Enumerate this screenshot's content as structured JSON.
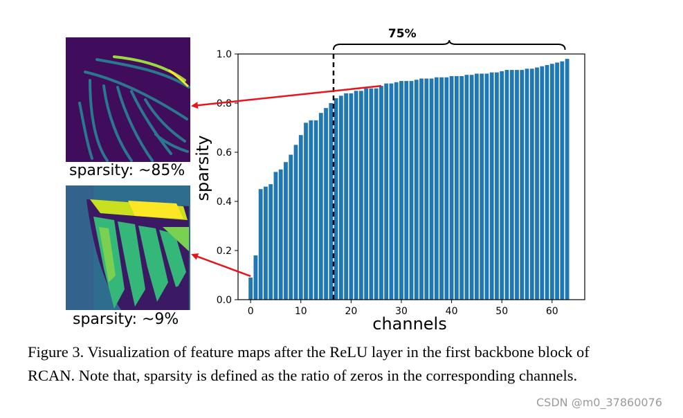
{
  "figure": {
    "caption": "Figure 3. Visualization of feature maps after the ReLU layer in the first backbone block of RCAN. Note that, sparsity is defined as the ratio of zeros in the corresponding channels.",
    "watermark": "CSDN @m0_37860076"
  },
  "thumbnails": [
    {
      "label": "sparsity: ~85%",
      "sparsity": 0.85
    },
    {
      "label": "sparsity: ~9%",
      "sparsity": 0.09
    }
  ],
  "colors": {
    "bar": "#1f77b4",
    "arrow": "#e8141c",
    "thumb_dark": "#440154",
    "thumb_mid": "#2a788e",
    "thumb_light": "#fde725"
  },
  "chart_data": {
    "type": "bar",
    "xlabel": "channels",
    "ylabel": "sparsity",
    "xlim": [
      -2.5,
      66.5
    ],
    "ylim": [
      0.0,
      1.0
    ],
    "xticks": [
      0,
      10,
      20,
      30,
      40,
      50,
      60
    ],
    "yticks": [
      0.0,
      0.2,
      0.4,
      0.6,
      0.8,
      1.0
    ],
    "categories": [
      0,
      1,
      2,
      3,
      4,
      5,
      6,
      7,
      8,
      9,
      10,
      11,
      12,
      13,
      14,
      15,
      16,
      17,
      18,
      19,
      20,
      21,
      22,
      23,
      24,
      25,
      26,
      27,
      28,
      29,
      30,
      31,
      32,
      33,
      34,
      35,
      36,
      37,
      38,
      39,
      40,
      41,
      42,
      43,
      44,
      45,
      46,
      47,
      48,
      49,
      50,
      51,
      52,
      53,
      54,
      55,
      56,
      57,
      58,
      59,
      60,
      61,
      62,
      63
    ],
    "values": [
      0.09,
      0.18,
      0.45,
      0.46,
      0.47,
      0.52,
      0.53,
      0.56,
      0.59,
      0.63,
      0.67,
      0.72,
      0.73,
      0.73,
      0.76,
      0.78,
      0.8,
      0.82,
      0.83,
      0.84,
      0.84,
      0.85,
      0.85,
      0.86,
      0.86,
      0.86,
      0.87,
      0.88,
      0.88,
      0.885,
      0.89,
      0.89,
      0.89,
      0.895,
      0.9,
      0.9,
      0.9,
      0.905,
      0.905,
      0.905,
      0.91,
      0.91,
      0.91,
      0.915,
      0.915,
      0.92,
      0.92,
      0.92,
      0.925,
      0.925,
      0.93,
      0.935,
      0.935,
      0.935,
      0.935,
      0.94,
      0.94,
      0.945,
      0.95,
      0.955,
      0.96,
      0.965,
      0.97,
      0.98
    ],
    "threshold_x": 16.5,
    "bracket_label": "75%"
  }
}
